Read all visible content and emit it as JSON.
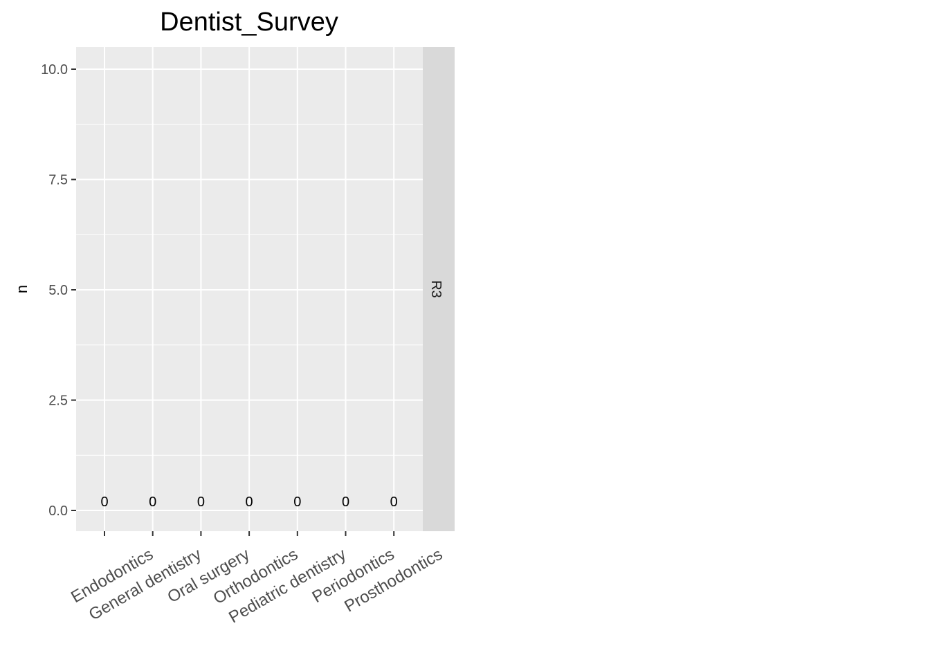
{
  "chart_data": {
    "type": "bar",
    "title": "Dentist_Survey",
    "xlabel": "",
    "ylabel": "n",
    "facet": "R3",
    "categories": [
      "Endodontics",
      "General dentistry",
      "Oral surgery",
      "Orthodontics",
      "Pediatric dentistry",
      "Periodontics",
      "Prosthodontics"
    ],
    "values": [
      0,
      0,
      0,
      0,
      0,
      0,
      0
    ],
    "data_labels": [
      "0",
      "0",
      "0",
      "0",
      "0",
      "0",
      "0"
    ],
    "ylim": [
      0,
      10
    ],
    "yticks": [
      0,
      2.5,
      5,
      7.5,
      10
    ],
    "ytick_labels": [
      "0.0",
      "2.5",
      "5.0",
      "7.5",
      "10.0"
    ],
    "grid": true,
    "colors": {
      "panel": "#ebebeb",
      "strip": "#d9d9d9",
      "gridline": "#ffffff",
      "bar": "#595959"
    }
  }
}
